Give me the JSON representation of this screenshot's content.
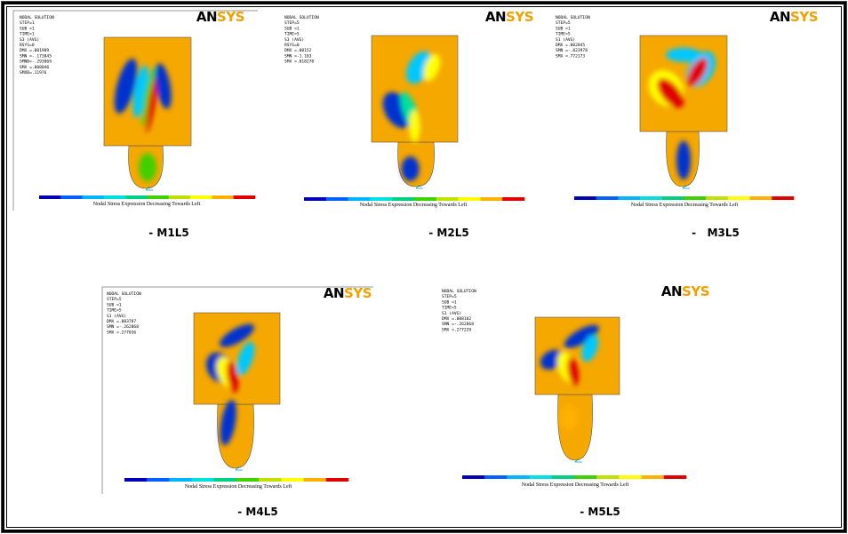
{
  "figure": {
    "logo": [
      "AN",
      "SYS"
    ],
    "panels": [
      {
        "header": [
          "NODAL SOLUTION",
          "STEP=1",
          "SUB =1",
          "TIME=1",
          "S3      (AVG)",
          "RSYS=0",
          "DMX =.001909",
          "SMN =-.173845",
          "SMNB=-.293069",
          "SMX =.008046",
          "SMXB=.11976"
        ],
        "caption": "Nodal Stress Expression Decreasing Towards Left",
        "label": "- M1L5"
      },
      {
        "header": [
          "NODAL SOLUTION",
          "STEP=5",
          "SUB =1",
          "TIME=5",
          "S3      (AVG)",
          "RSYS=0",
          "DMX =.00152",
          "SMN =-1.183",
          "SMX =.018278"
        ],
        "caption": "Nodal Stress Expression Decreasing Towards Left",
        "label": "- M2L5"
      },
      {
        "header": [
          "NODAL SOLUTION",
          "STEP=5",
          "SUB =1",
          "TIME=5",
          "S1      (AVG)",
          "DMX =.002845",
          "SMN =-.023978",
          "SMX =.772173"
        ],
        "caption": "Nodal Stress Expression Decreasing Towards Left",
        "label": "-   M3L5"
      },
      {
        "header": [
          "NODAL SOLUTION",
          "STEP=5",
          "SUB =1",
          "TIME=5",
          "S1      (AVG)",
          "DMX =.003787",
          "SMN =-.262868",
          "SMX =.277036"
        ],
        "caption": "Nodal Stress Expression Decreasing Towards Left",
        "label": "- M4L5"
      },
      {
        "header": [
          "NODAL SOLUTION",
          "STEP=5",
          "SUB =1",
          "TIME=5",
          "S1      (AVG)",
          "DMX =.008102",
          "SMN =-.262868",
          "SMX =.277229"
        ],
        "caption": "Nodal Stress Expression Decreasing Towards Left",
        "label": "- M5L5"
      }
    ]
  }
}
